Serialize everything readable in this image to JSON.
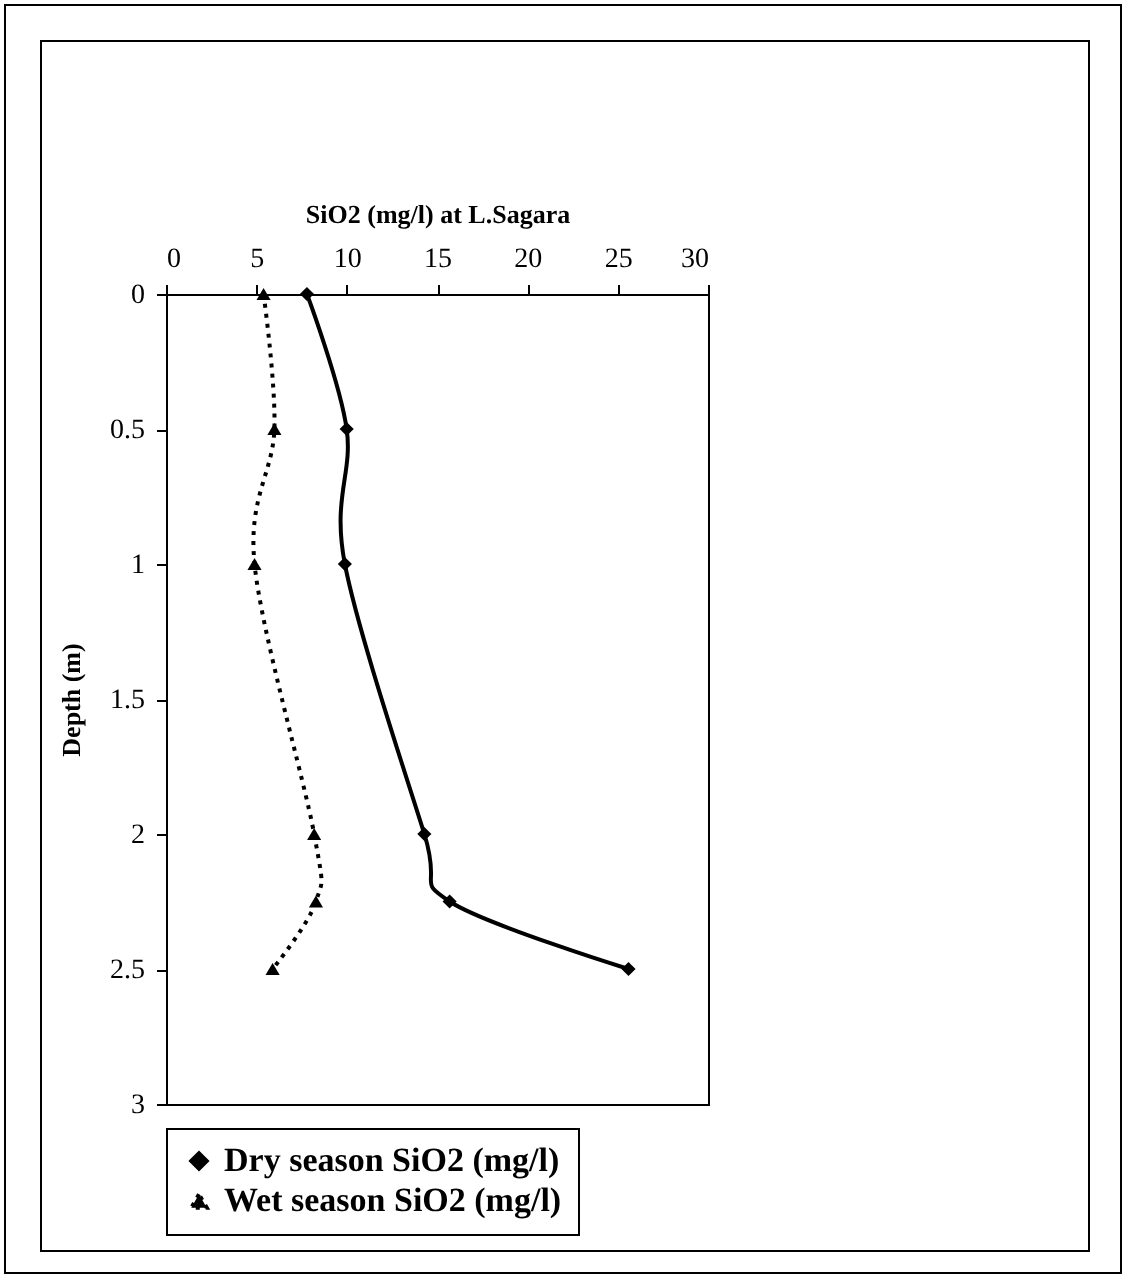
{
  "chart_data": {
    "type": "line",
    "xlabel": "SiO2 (mg/l) at L.Sagara",
    "ylabel": "Depth (m)",
    "xlim": [
      0,
      30
    ],
    "xticks": [
      0,
      5,
      10,
      15,
      20,
      25,
      30
    ],
    "ylim": [
      3,
      0
    ],
    "yticks": [
      {
        "value": 0,
        "label": "0"
      },
      0.5,
      {
        "value": 1,
        "label": "1"
      },
      1.5,
      {
        "value": 2,
        "label": "2"
      },
      2.5,
      {
        "value": 3,
        "label": "3"
      }
    ],
    "grid": false,
    "legend": "bottom",
    "series": [
      {
        "name": "Dry season SiO2 (mg/l)",
        "color": "#000000",
        "marker": "diamond",
        "line_style": "solid",
        "x": [
          7.8,
          10,
          9.9,
          14.3,
          15.7,
          25.6
        ],
        "values": [
          0,
          0.5,
          1,
          2,
          2.25,
          2.5
        ]
      },
      {
        "name": "Wet season SiO2 (mg/l)",
        "color": "#000000",
        "marker": "triangle",
        "line_style": "dotted",
        "x": [
          5.4,
          6,
          4.9,
          8.2,
          8.3,
          5.9
        ],
        "values": [
          0,
          0.5,
          1,
          2,
          2.25,
          2.5
        ]
      }
    ]
  }
}
